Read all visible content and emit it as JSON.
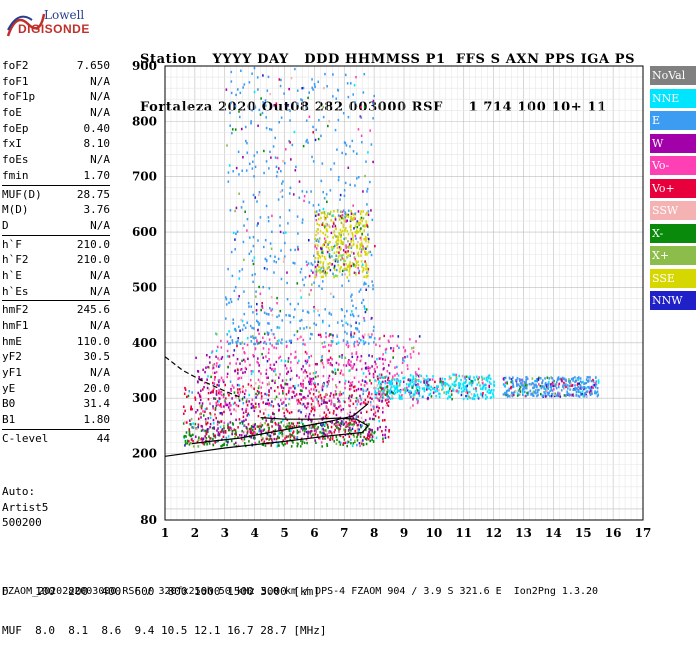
{
  "logo": {
    "line1": "Lowell",
    "line2": "DIGISONDE"
  },
  "header": {
    "line1": "Station   YYYY DAY   DDD HHMMSS P1  FFS S AXN PPS IGA PS",
    "line2": "Fortaleza 2020 Out08 282 003000 RSF     1 714 100 10+ 11"
  },
  "params": [
    {
      "group": [
        {
          "label": "foF2",
          "value": "7.650"
        },
        {
          "label": "foF1",
          "value": "N/A"
        },
        {
          "label": "foF1p",
          "value": "N/A"
        },
        {
          "label": "foE",
          "value": "N/A"
        },
        {
          "label": "foEp",
          "value": "0.40"
        },
        {
          "label": "fxI",
          "value": "8.10"
        },
        {
          "label": "foEs",
          "value": "N/A"
        },
        {
          "label": "fmin",
          "value": "1.70"
        }
      ]
    },
    {
      "group": [
        {
          "label": "MUF(D)",
          "value": "28.75"
        },
        {
          "label": "M(D)",
          "value": "3.76"
        },
        {
          "label": "D",
          "value": "N/A"
        }
      ]
    },
    {
      "group": [
        {
          "label": "h`F",
          "value": "210.0"
        },
        {
          "label": "h`F2",
          "value": "210.0"
        },
        {
          "label": "h`E",
          "value": "N/A"
        },
        {
          "label": "h`Es",
          "value": "N/A"
        }
      ]
    },
    {
      "group": [
        {
          "label": "hmF2",
          "value": "245.6"
        },
        {
          "label": "hmF1",
          "value": "N/A"
        },
        {
          "label": "hmE",
          "value": "110.0"
        },
        {
          "label": "yF2",
          "value": "30.5"
        },
        {
          "label": "yF1",
          "value": "N/A"
        },
        {
          "label": "yE",
          "value": "20.0"
        },
        {
          "label": "B0",
          "value": "31.4"
        },
        {
          "label": "B1",
          "value": "1.80"
        }
      ]
    },
    {
      "group": [
        {
          "label": "C-level",
          "value": "44"
        }
      ]
    }
  ],
  "auto": {
    "line1": "Auto:",
    "line2": "Artist5",
    "line3": "500200"
  },
  "legend": [
    {
      "label": "NoVal",
      "color": "#808080"
    },
    {
      "label": "NNE",
      "color": "#00e5ff"
    },
    {
      "label": "E",
      "color": "#3b9cf2"
    },
    {
      "label": "W",
      "color": "#a200a8"
    },
    {
      "label": "Vo-",
      "color": "#ff3fb4"
    },
    {
      "label": "Vo+",
      "color": "#e8003c"
    },
    {
      "label": "SSW",
      "color": "#f4b2b2"
    },
    {
      "label": "X-",
      "color": "#0a8a0a"
    },
    {
      "label": "X+",
      "color": "#8cbc4a"
    },
    {
      "label": "SSE",
      "color": "#d6d600"
    },
    {
      "label": "NNW",
      "color": "#2020c8"
    }
  ],
  "chart_data": {
    "type": "scatter",
    "title": "",
    "xlabel": "",
    "ylabel": "",
    "xlim": [
      1,
      17
    ],
    "ylim": [
      80,
      900
    ],
    "x_ticks": [
      1,
      2,
      3,
      4,
      5,
      6,
      7,
      8,
      9,
      10,
      11,
      12,
      13,
      14,
      15,
      16,
      17
    ],
    "y_ticks": [
      80,
      200,
      300,
      400,
      500,
      600,
      700,
      800,
      900
    ],
    "grid": true,
    "echo_clusters": [
      {
        "x": [
          1.6,
          8.0
        ],
        "y": [
          215,
          260
        ],
        "mode": "X-"
      },
      {
        "x": [
          1.6,
          8.5
        ],
        "y": [
          220,
          330
        ],
        "mode": "Vo+"
      },
      {
        "x": [
          2.0,
          8.5
        ],
        "y": [
          230,
          380
        ],
        "mode": "W"
      },
      {
        "x": [
          2.5,
          9.5
        ],
        "y": [
          280,
          420
        ],
        "mode": "Vo-"
      },
      {
        "x": [
          8.0,
          12.0
        ],
        "y": [
          300,
          345
        ],
        "mode": "NNE"
      },
      {
        "x": [
          12.3,
          15.5
        ],
        "y": [
          305,
          340
        ],
        "mode": "E"
      },
      {
        "x": [
          3.0,
          8.0
        ],
        "y": [
          400,
          900
        ],
        "mode": "E"
      },
      {
        "x": [
          6.0,
          7.8
        ],
        "y": [
          520,
          640
        ],
        "mode": "SSE"
      }
    ],
    "lines": [
      {
        "name": "trace",
        "x": [
          1.9,
          2.5,
          3.5,
          4.5,
          5.5,
          6.5,
          7.3,
          7.8
        ],
        "y": [
          218,
          222,
          228,
          238,
          248,
          258,
          268,
          290
        ]
      },
      {
        "name": "profile",
        "x": [
          1.0,
          3.0,
          5.0,
          6.5,
          7.6,
          7.8,
          7.4,
          6.8,
          6.0,
          5.0,
          4.2
        ],
        "y": [
          195,
          210,
          222,
          232,
          238,
          250,
          262,
          264,
          262,
          262,
          265
        ]
      },
      {
        "name": "topside",
        "x": [
          1.0,
          1.6,
          2.3,
          3.0,
          3.6
        ],
        "y": [
          375,
          350,
          330,
          313,
          300
        ]
      }
    ]
  },
  "bottom": {
    "line1": "D    100  200  400  600  800 1000 1500 3000 [km]",
    "line2": "MUF  8.0  8.1  8.6  9.4 10.5 12.1 16.7 28.7 [MHz]"
  },
  "footer": "FZAOM_2020282003000.RSF / 320fx256h 50 kHz 5.0 km / DPS-4 FZAOM 904 / 3.9 S 321.6 E  Ion2Png 1.3.20"
}
